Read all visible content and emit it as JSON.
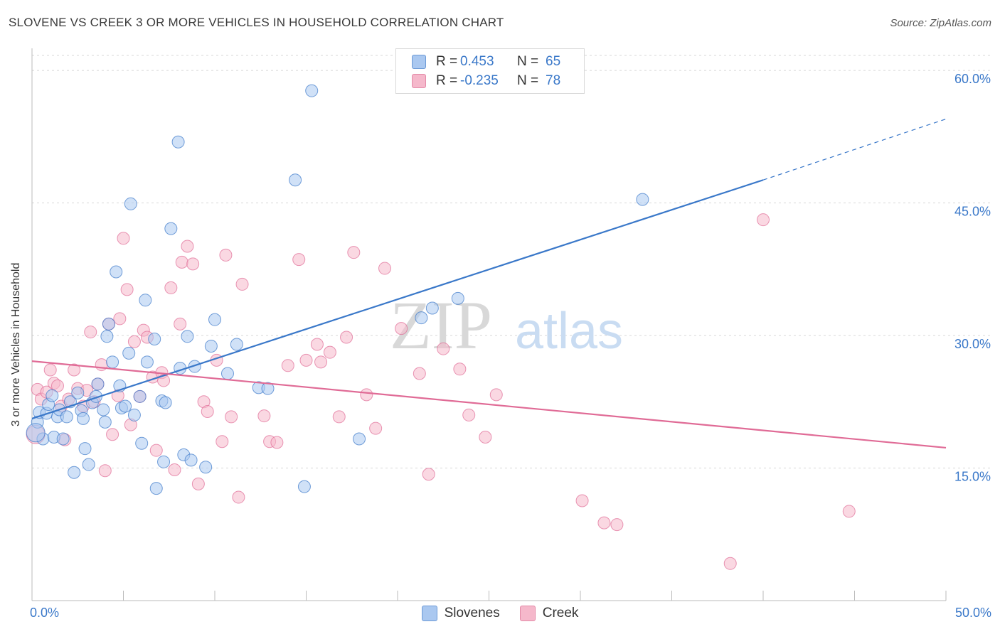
{
  "header": {
    "title": "SLOVENE VS CREEK 3 OR MORE VEHICLES IN HOUSEHOLD CORRELATION CHART",
    "source": "Source: ZipAtlas.com"
  },
  "legend": {
    "r_label": "R =",
    "n_label": "N =",
    "rows": [
      {
        "r": "0.453",
        "n": "65",
        "color": "#aac8f0"
      },
      {
        "r": "-0.235",
        "n": "78",
        "color": "#f5b8cb"
      }
    ]
  },
  "bottom_legend": {
    "items": [
      {
        "label": "Slovenes",
        "color": "#aac8f0"
      },
      {
        "label": "Creek",
        "color": "#f5b8cb"
      }
    ]
  },
  "x_axis": {
    "min_label": "0.0%",
    "max_label": "50.0%"
  },
  "watermark": {
    "zip": "ZIP",
    "atlas": "atlas"
  },
  "chart_data": {
    "type": "scatter",
    "title": "SLOVENE VS CREEK 3 OR MORE VEHICLES IN HOUSEHOLD CORRELATION CHART",
    "xlabel": "",
    "ylabel": "3 or more Vehicles in Household",
    "xlim": [
      0,
      50
    ],
    "ylim": [
      0,
      62.5
    ],
    "y_ticks": [
      15,
      30,
      45,
      60
    ],
    "y_tick_labels": [
      "15.0%",
      "30.0%",
      "45.0%",
      "60.0%"
    ],
    "grid": "horizontal dashed",
    "legend": "top-center",
    "series": [
      {
        "name": "Slovenes",
        "color": "#3a78c9",
        "fill": "#aac8f0",
        "trend": {
          "x0": 0,
          "y0": 20.6,
          "x1": 40,
          "y1": 47.6,
          "dashed_to_x": 50,
          "dashed_to_y": 54.5
        },
        "points": [
          [
            0.3,
            20.2
          ],
          [
            0.4,
            21.3
          ],
          [
            0.6,
            18.3
          ],
          [
            0.8,
            21.2
          ],
          [
            0.9,
            22.2
          ],
          [
            1.1,
            23.2
          ],
          [
            1.2,
            18.5
          ],
          [
            1.4,
            20.8
          ],
          [
            1.5,
            21.6
          ],
          [
            1.7,
            18.3
          ],
          [
            1.9,
            20.8
          ],
          [
            2.1,
            22.5
          ],
          [
            2.3,
            14.5
          ],
          [
            2.5,
            23.5
          ],
          [
            2.7,
            21.5
          ],
          [
            2.8,
            20.6
          ],
          [
            2.9,
            17.2
          ],
          [
            3.1,
            15.4
          ],
          [
            3.3,
            22.4
          ],
          [
            3.5,
            23.1
          ],
          [
            3.6,
            24.5
          ],
          [
            3.9,
            21.6
          ],
          [
            4.0,
            20.2
          ],
          [
            4.1,
            29.9
          ],
          [
            4.2,
            31.3
          ],
          [
            4.4,
            27.0
          ],
          [
            4.6,
            37.2
          ],
          [
            4.8,
            24.3
          ],
          [
            4.9,
            21.8
          ],
          [
            5.1,
            22.0
          ],
          [
            5.3,
            28.0
          ],
          [
            5.4,
            44.9
          ],
          [
            5.6,
            21.0
          ],
          [
            5.9,
            23.1
          ],
          [
            6.0,
            17.8
          ],
          [
            6.2,
            34.0
          ],
          [
            6.3,
            27.0
          ],
          [
            6.7,
            29.6
          ],
          [
            6.8,
            12.7
          ],
          [
            7.1,
            22.6
          ],
          [
            7.2,
            15.7
          ],
          [
            7.3,
            22.4
          ],
          [
            7.6,
            42.1
          ],
          [
            8.0,
            51.9
          ],
          [
            8.1,
            26.3
          ],
          [
            8.3,
            16.5
          ],
          [
            8.5,
            29.9
          ],
          [
            8.7,
            15.9
          ],
          [
            8.9,
            26.5
          ],
          [
            9.5,
            15.1
          ],
          [
            9.8,
            28.8
          ],
          [
            10.0,
            31.8
          ],
          [
            10.7,
            25.7
          ],
          [
            11.2,
            29.0
          ],
          [
            12.4,
            24.1
          ],
          [
            12.9,
            24.0
          ],
          [
            14.4,
            47.6
          ],
          [
            14.9,
            12.9
          ],
          [
            15.3,
            57.7
          ],
          [
            17.9,
            18.3
          ],
          [
            21.3,
            32.0
          ],
          [
            21.9,
            33.1
          ],
          [
            23.3,
            34.2
          ],
          [
            33.4,
            45.4
          ],
          [
            0.2,
            19.0
          ]
        ]
      },
      {
        "name": "Creek",
        "color": "#e06b96",
        "fill": "#f5b8cb",
        "trend": {
          "x0": 0,
          "y0": 27.1,
          "x1": 50,
          "y1": 17.3
        },
        "points": [
          [
            0.3,
            23.9
          ],
          [
            0.5,
            22.8
          ],
          [
            0.8,
            23.6
          ],
          [
            1.0,
            26.1
          ],
          [
            1.2,
            24.6
          ],
          [
            1.4,
            24.3
          ],
          [
            1.6,
            22.0
          ],
          [
            1.8,
            18.2
          ],
          [
            2.0,
            22.8
          ],
          [
            2.3,
            26.1
          ],
          [
            2.5,
            24.0
          ],
          [
            2.8,
            22.0
          ],
          [
            3.0,
            23.8
          ],
          [
            3.2,
            30.4
          ],
          [
            3.4,
            22.5
          ],
          [
            3.6,
            24.5
          ],
          [
            3.8,
            26.7
          ],
          [
            4.0,
            14.7
          ],
          [
            4.2,
            31.3
          ],
          [
            4.4,
            18.8
          ],
          [
            4.7,
            23.2
          ],
          [
            4.8,
            31.9
          ],
          [
            5.0,
            41.0
          ],
          [
            5.2,
            35.2
          ],
          [
            5.4,
            19.9
          ],
          [
            5.6,
            29.3
          ],
          [
            5.9,
            23.1
          ],
          [
            6.1,
            30.6
          ],
          [
            6.3,
            29.8
          ],
          [
            6.6,
            25.3
          ],
          [
            6.8,
            17.0
          ],
          [
            7.1,
            25.8
          ],
          [
            7.2,
            24.9
          ],
          [
            7.6,
            35.4
          ],
          [
            7.8,
            14.8
          ],
          [
            8.1,
            31.3
          ],
          [
            8.2,
            38.3
          ],
          [
            8.5,
            40.1
          ],
          [
            8.8,
            38.1
          ],
          [
            9.1,
            13.2
          ],
          [
            9.4,
            22.5
          ],
          [
            9.6,
            21.4
          ],
          [
            10.1,
            27.2
          ],
          [
            10.4,
            18.0
          ],
          [
            10.6,
            39.1
          ],
          [
            10.9,
            20.8
          ],
          [
            11.3,
            11.7
          ],
          [
            11.5,
            35.8
          ],
          [
            12.7,
            20.9
          ],
          [
            13.0,
            18.0
          ],
          [
            13.4,
            17.9
          ],
          [
            14.0,
            26.6
          ],
          [
            14.6,
            38.6
          ],
          [
            15.0,
            27.2
          ],
          [
            15.6,
            29.0
          ],
          [
            15.8,
            27.0
          ],
          [
            16.3,
            28.1
          ],
          [
            16.8,
            20.8
          ],
          [
            17.2,
            29.8
          ],
          [
            17.6,
            39.4
          ],
          [
            18.3,
            23.3
          ],
          [
            18.8,
            19.5
          ],
          [
            19.3,
            37.6
          ],
          [
            20.2,
            30.8
          ],
          [
            21.2,
            25.7
          ],
          [
            21.7,
            14.3
          ],
          [
            22.5,
            28.5
          ],
          [
            23.4,
            26.2
          ],
          [
            23.9,
            21.0
          ],
          [
            24.8,
            18.5
          ],
          [
            25.4,
            23.3
          ],
          [
            30.1,
            11.3
          ],
          [
            31.3,
            8.8
          ],
          [
            32.0,
            8.6
          ],
          [
            38.2,
            4.2
          ],
          [
            40.0,
            43.1
          ],
          [
            44.7,
            10.1
          ],
          [
            0.2,
            18.8
          ]
        ]
      }
    ]
  }
}
